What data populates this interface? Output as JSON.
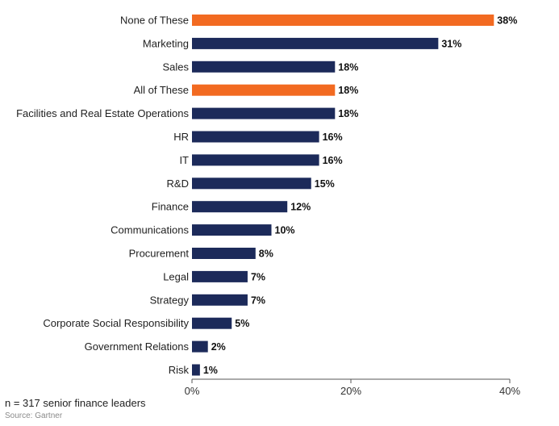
{
  "chart_data": {
    "type": "bar",
    "orientation": "horizontal",
    "categories": [
      "None of These",
      "Marketing",
      "Sales",
      "All of These",
      "Facilities and Real Estate Operations",
      "HR",
      "IT",
      "R&D",
      "Finance",
      "Communications",
      "Procurement",
      "Legal",
      "Strategy",
      "Corporate Social Responsibility",
      "Government Relations",
      "Risk"
    ],
    "values": [
      38,
      31,
      18,
      18,
      18,
      16,
      16,
      15,
      12,
      10,
      8,
      7,
      7,
      5,
      2,
      1
    ],
    "value_labels": [
      "38%",
      "31%",
      "18%",
      "18%",
      "18%",
      "16%",
      "16%",
      "15%",
      "12%",
      "10%",
      "8%",
      "7%",
      "7%",
      "5%",
      "2%",
      "1%"
    ],
    "highlight": [
      true,
      false,
      false,
      true,
      false,
      false,
      false,
      false,
      false,
      false,
      false,
      false,
      false,
      false,
      false,
      false
    ],
    "xlim": [
      0,
      40
    ],
    "xticks": [
      0,
      20,
      40
    ],
    "xtick_labels": [
      "0%",
      "20%",
      "40%"
    ],
    "grid": false,
    "colors": {
      "default": "#1c2a5a",
      "highlight": "#f26a21"
    }
  },
  "footnote": "n = 317 senior finance leaders",
  "source": "Source: Gartner"
}
